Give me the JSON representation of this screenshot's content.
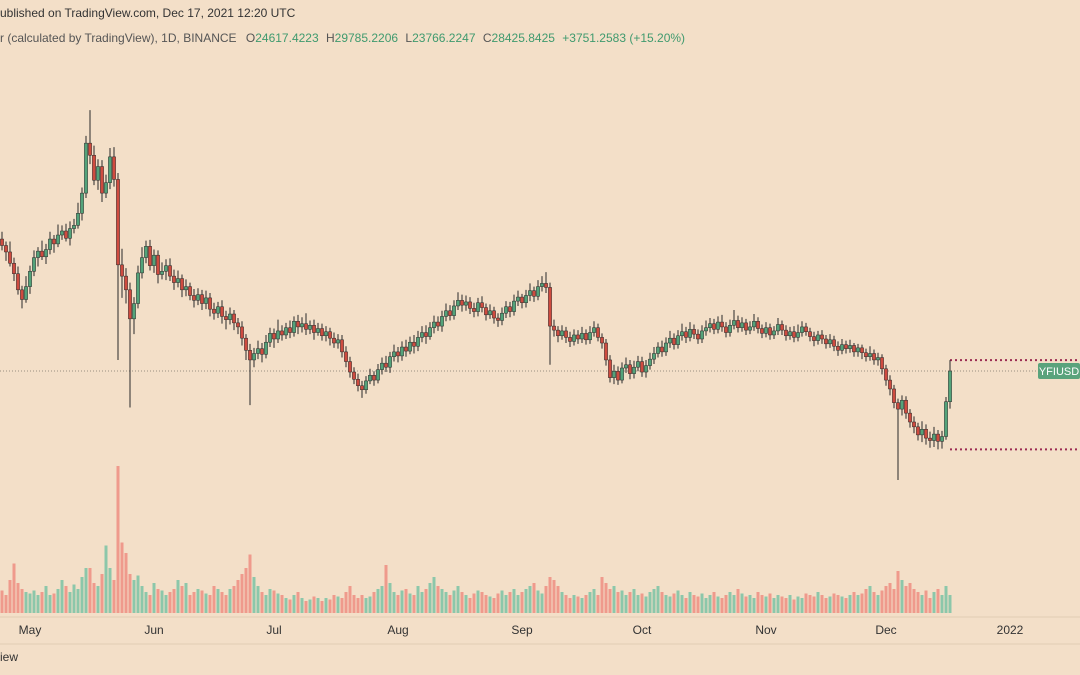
{
  "header": {
    "published": "ublished on TradingView.com, Dec 17, 2021 12:20 UTC",
    "symbol": "r (calculated by TradingView), 1D, BINANCE",
    "o_label": "O",
    "h_label": "H",
    "l_label": "L",
    "c_label": "C",
    "change": "+3751.2583 (+15.20%)"
  },
  "footer": {
    "brand": "iew"
  },
  "chart_data": {
    "type": "candlestick",
    "open": [
      44800,
      44000,
      43200,
      41800,
      40500,
      38500,
      37300,
      38900,
      40800,
      42500,
      43300,
      42600,
      43500,
      44800,
      44200,
      45300,
      45800,
      44900,
      46100,
      46500,
      48000,
      50500,
      56700,
      55200,
      52100,
      53800,
      50500,
      51800,
      55000,
      52200,
      41600,
      40200,
      38500,
      34900,
      36800,
      40600,
      42500,
      43900,
      41500,
      42800,
      40400,
      40800,
      41500,
      40200,
      39400,
      39900,
      38500,
      38900,
      37800,
      37200,
      37900,
      36800,
      37500,
      36100,
      35600,
      36400,
      35200,
      34800,
      35500,
      34400,
      33900,
      32500,
      31000,
      29800,
      30600,
      31200,
      30500,
      32000,
      33100,
      32400,
      33400,
      32900,
      33800,
      33200,
      34600,
      33900,
      34300,
      33600,
      34100,
      33200,
      33700,
      32800,
      33300,
      32500,
      31900,
      32300,
      30800,
      29600,
      28300,
      27400,
      26600,
      26100,
      27200,
      27900,
      27300,
      28600,
      29400,
      28900,
      30200,
      30800,
      30300,
      31400,
      30900,
      32000,
      31500,
      32600,
      33200,
      32700,
      33800,
      34500,
      34000,
      35200,
      35900,
      35300,
      36500,
      37200,
      36600,
      37000,
      36200,
      35800,
      36900,
      36300,
      35400,
      35900,
      35000,
      34700,
      35600,
      36400,
      35800,
      37100,
      37600,
      36900,
      37800,
      38400,
      37700,
      38900,
      39300,
      38800,
      34000,
      33500,
      32800,
      33400,
      32600,
      32100,
      32900,
      32400,
      33100,
      32300,
      33200,
      33800,
      32600,
      31900,
      29800,
      27600,
      28400,
      27300,
      28800,
      29200,
      28100,
      28900,
      29600,
      28300,
      29100,
      29900,
      30600,
      31400,
      30800,
      31900,
      32500,
      31700,
      32800,
      33300,
      32600,
      33600,
      33000,
      32400,
      33400,
      33800,
      34300,
      33600,
      34500,
      33900,
      33200,
      34100,
      34700,
      33800,
      34400,
      33500,
      33900,
      34600,
      33700,
      33100,
      33800,
      32900,
      33400,
      34200,
      33500,
      32800,
      33300,
      32600,
      33200,
      33900,
      33300,
      32700,
      32200,
      32900,
      32400,
      31800,
      32300,
      31500,
      31000,
      31700,
      31200,
      31600,
      30800,
      31300,
      30700,
      30200,
      30600,
      29800,
      30100,
      28700,
      27300,
      26200,
      24500,
      23700,
      24800,
      23200,
      22100,
      21500,
      20500,
      21200,
      20100,
      19800,
      20600,
      19700,
      20300,
      24617.4223
    ],
    "high": [
      45700,
      44500,
      44500,
      42500,
      41400,
      39000,
      40200,
      41500,
      43400,
      43800,
      44600,
      44200,
      45700,
      45300,
      46600,
      46500,
      46700,
      47000,
      47300,
      49300,
      51200,
      57600,
      60800,
      56400,
      54700,
      54600,
      52800,
      56100,
      56200,
      53000,
      43600,
      41200,
      39400,
      37600,
      41500,
      43800,
      44600,
      44700,
      43500,
      43400,
      41900,
      42300,
      42400,
      41000,
      40900,
      40400,
      39800,
      39400,
      38600,
      38700,
      38500,
      38400,
      38100,
      36900,
      37000,
      37200,
      35900,
      36300,
      36000,
      35000,
      34600,
      33000,
      31800,
      31300,
      32200,
      31900,
      32900,
      33800,
      33700,
      34800,
      34100,
      34400,
      34700,
      35200,
      35400,
      35100,
      35600,
      34700,
      34800,
      34400,
      34300,
      34000,
      33800,
      33200,
      33000,
      32900,
      31500,
      30200,
      28900,
      28100,
      27200,
      27800,
      28700,
      28400,
      29300,
      30100,
      30300,
      30800,
      31700,
      31400,
      32100,
      32300,
      32700,
      32900,
      33400,
      34000,
      34100,
      34500,
      35300,
      35200,
      35900,
      36800,
      36600,
      37200,
      38200,
      37900,
      37800,
      37600,
      36900,
      37500,
      37700,
      36800,
      36700,
      36400,
      35600,
      36300,
      37100,
      37000,
      37900,
      38400,
      38000,
      38500,
      39300,
      38900,
      39700,
      40200,
      40700,
      39400,
      34800,
      34000,
      34100,
      33900,
      33300,
      33600,
      33500,
      33900,
      33600,
      34000,
      34600,
      34300,
      33100,
      32400,
      30400,
      29200,
      29000,
      29500,
      30100,
      29800,
      29700,
      30300,
      30200,
      29800,
      30700,
      31400,
      32000,
      32200,
      32600,
      33400,
      33100,
      33500,
      34300,
      33900,
      34500,
      34200,
      33600,
      34100,
      34700,
      35000,
      34900,
      35200,
      35400,
      34500,
      34800,
      36000,
      35300,
      35100,
      34900,
      34600,
      35500,
      35100,
      34200,
      34500,
      34300,
      34000,
      35000,
      34700,
      34100,
      33900,
      34000,
      34200,
      34600,
      34400,
      33800,
      33300,
      33400,
      33500,
      32900,
      33000,
      32800,
      32100,
      32400,
      32200,
      32300,
      31900,
      31800,
      31700,
      31200,
      31500,
      31100,
      30700,
      30500,
      29200,
      27900,
      26700,
      25000,
      25400,
      25300,
      23700,
      22800,
      22000,
      22200,
      21800,
      20900,
      21500,
      21100,
      21000,
      25200,
      29785.2206
    ],
    "low": [
      43400,
      42100,
      41400,
      39600,
      37900,
      36200,
      36900,
      38000,
      40200,
      41400,
      42200,
      41700,
      42900,
      43100,
      43800,
      44700,
      44500,
      44000,
      45500,
      46100,
      47100,
      49900,
      54100,
      51500,
      50900,
      49400,
      49900,
      51000,
      51300,
      29800,
      37500,
      36800,
      23900,
      33000,
      36200,
      39900,
      41800,
      40900,
      40600,
      39300,
      39800,
      39700,
      39600,
      38500,
      38800,
      37600,
      37700,
      37200,
      36300,
      36600,
      36000,
      36100,
      35200,
      34800,
      35000,
      34300,
      33600,
      34200,
      33500,
      33000,
      31600,
      29800,
      24200,
      28900,
      29900,
      29500,
      30000,
      31400,
      31300,
      31900,
      32200,
      32400,
      32500,
      32700,
      33000,
      33200,
      32900,
      33000,
      32300,
      32800,
      32200,
      32100,
      31600,
      31300,
      31200,
      30100,
      28900,
      27600,
      26800,
      25900,
      25100,
      25600,
      26800,
      26600,
      26900,
      28000,
      28300,
      28200,
      29600,
      29500,
      29700,
      30200,
      30500,
      30600,
      30900,
      32000,
      31800,
      32300,
      33100,
      33400,
      33300,
      34600,
      34700,
      34800,
      36000,
      35800,
      35900,
      35500,
      35100,
      35200,
      35700,
      34700,
      34900,
      34300,
      33900,
      34100,
      35000,
      35100,
      35300,
      36500,
      36200,
      36300,
      37100,
      37000,
      37200,
      38300,
      38100,
      29200,
      32700,
      32000,
      32300,
      31900,
      31400,
      31600,
      31800,
      31900,
      31700,
      31800,
      32700,
      32100,
      31200,
      29100,
      27000,
      26800,
      26700,
      26900,
      28200,
      27400,
      27500,
      28400,
      27700,
      27600,
      28600,
      29300,
      30100,
      30200,
      30300,
      31300,
      31100,
      31200,
      32200,
      31900,
      32100,
      32400,
      31800,
      31900,
      32800,
      33200,
      33000,
      33100,
      33300,
      32600,
      32700,
      33600,
      33200,
      33300,
      32900,
      33000,
      33400,
      33100,
      32500,
      32600,
      32300,
      32400,
      32900,
      32900,
      32200,
      32300,
      32000,
      32100,
      32700,
      32800,
      32100,
      31500,
      31700,
      31800,
      31200,
      31300,
      30900,
      30300,
      30500,
      30600,
      30700,
      30200,
      30200,
      29900,
      29600,
      29700,
      29200,
      29100,
      28000,
      26600,
      25400,
      23800,
      14900,
      22900,
      22500,
      21400,
      20700,
      19800,
      19600,
      19300,
      18900,
      19000,
      18700,
      18800,
      19900,
      23766.2247
    ],
    "close": [
      44000,
      43200,
      41800,
      40500,
      38500,
      37300,
      38900,
      40800,
      42500,
      43300,
      42600,
      43500,
      44800,
      44200,
      45300,
      45800,
      44900,
      46100,
      46500,
      48000,
      50500,
      56700,
      55200,
      52100,
      53800,
      50500,
      51800,
      55000,
      52200,
      41600,
      40200,
      38500,
      34900,
      36800,
      40600,
      42500,
      43900,
      41500,
      42800,
      40400,
      40800,
      41500,
      40200,
      39400,
      39900,
      38500,
      38900,
      37800,
      37200,
      37900,
      36800,
      37500,
      36100,
      35600,
      36400,
      35200,
      34800,
      35500,
      34400,
      33900,
      32500,
      31000,
      29800,
      30600,
      31200,
      30500,
      32000,
      33100,
      32400,
      33400,
      32900,
      33800,
      33200,
      34600,
      33900,
      34300,
      33600,
      34100,
      33200,
      33700,
      32800,
      33300,
      32500,
      31900,
      32300,
      30800,
      29600,
      28300,
      27400,
      26600,
      26100,
      27200,
      27900,
      27300,
      28600,
      29400,
      28900,
      30200,
      30800,
      30300,
      31400,
      30900,
      32000,
      31500,
      32600,
      33200,
      32700,
      33800,
      34500,
      34000,
      35200,
      35900,
      35300,
      36500,
      37200,
      36600,
      37000,
      36200,
      35800,
      36900,
      36300,
      35400,
      35900,
      35000,
      34700,
      35600,
      36400,
      35800,
      37100,
      37600,
      36900,
      37800,
      38400,
      37700,
      38900,
      39300,
      38800,
      34000,
      33500,
      32800,
      33400,
      32600,
      32100,
      32900,
      32400,
      33100,
      32300,
      33200,
      33800,
      32600,
      31900,
      29800,
      27600,
      28400,
      27300,
      28800,
      29200,
      28100,
      28900,
      29600,
      28300,
      29100,
      29900,
      30600,
      31400,
      30800,
      31900,
      32500,
      31700,
      32800,
      33300,
      32600,
      33600,
      33000,
      32400,
      33400,
      33800,
      34300,
      33600,
      34500,
      33900,
      33200,
      34100,
      34700,
      33800,
      34400,
      33500,
      33900,
      34600,
      33700,
      33100,
      33800,
      32900,
      33400,
      34200,
      33500,
      32800,
      33300,
      32600,
      33200,
      33900,
      33300,
      32700,
      32200,
      32900,
      32400,
      31800,
      32300,
      31500,
      31000,
      31700,
      31200,
      31600,
      30800,
      31300,
      30700,
      30200,
      30600,
      29800,
      30100,
      28700,
      27300,
      26200,
      24500,
      23700,
      24800,
      23200,
      22100,
      21500,
      20500,
      21200,
      20100,
      19800,
      20600,
      19700,
      20300,
      24617.4223,
      28425.8425
    ],
    "volume": [
      15,
      12,
      22,
      33,
      20,
      16,
      14,
      13,
      15,
      12,
      14,
      18,
      12,
      13,
      16,
      22,
      18,
      14,
      19,
      16,
      24,
      30,
      30,
      20,
      18,
      26,
      45,
      30,
      22,
      98,
      47,
      40,
      26,
      22,
      25,
      18,
      14,
      12,
      20,
      16,
      15,
      12,
      14,
      16,
      22,
      18,
      20,
      12,
      14,
      16,
      15,
      13,
      12,
      18,
      16,
      14,
      12,
      16,
      18,
      22,
      26,
      30,
      39,
      24,
      18,
      14,
      12,
      16,
      15,
      13,
      12,
      10,
      9,
      12,
      14,
      10,
      8,
      9,
      11,
      10,
      8,
      10,
      9,
      12,
      11,
      10,
      14,
      18,
      12,
      10,
      12,
      10,
      11,
      14,
      16,
      18,
      32,
      20,
      14,
      12,
      15,
      16,
      13,
      12,
      18,
      14,
      16,
      20,
      24,
      18,
      16,
      14,
      12,
      15,
      18,
      14,
      12,
      10,
      13,
      15,
      14,
      12,
      11,
      10,
      13,
      15,
      12,
      14,
      16,
      12,
      14,
      16,
      18,
      20,
      15,
      13,
      18,
      24,
      22,
      18,
      14,
      12,
      10,
      12,
      11,
      10,
      12,
      14,
      16,
      12,
      24,
      20,
      16,
      18,
      14,
      15,
      12,
      14,
      16,
      12,
      13,
      11,
      14,
      16,
      18,
      14,
      12,
      11,
      13,
      15,
      12,
      10,
      14,
      12,
      11,
      13,
      10,
      12,
      14,
      11,
      10,
      12,
      14,
      12,
      16,
      13,
      11,
      12,
      10,
      14,
      12,
      11,
      13,
      10,
      12,
      11,
      10,
      12,
      9,
      11,
      10,
      13,
      12,
      11,
      14,
      12,
      10,
      11,
      13,
      12,
      11,
      10,
      12,
      14,
      12,
      13,
      16,
      18,
      14,
      12,
      15,
      18,
      20,
      16,
      28,
      22,
      18,
      20,
      16,
      14,
      12,
      15,
      10,
      14,
      16,
      12,
      18,
      12
    ],
    "ylim": [
      -1600,
      69500
    ],
    "volume_lim": [
      0,
      100
    ],
    "xlim": [
      -0.5,
      269.5
    ],
    "xticks": [
      {
        "value": 7,
        "label": "May"
      },
      {
        "value": 38,
        "label": "Jun"
      },
      {
        "value": 68,
        "label": "Jul"
      },
      {
        "value": 99,
        "label": "Aug"
      },
      {
        "value": 130,
        "label": "Sep"
      },
      {
        "value": 160,
        "label": "Oct"
      },
      {
        "value": 191,
        "label": "Nov"
      },
      {
        "value": 221,
        "label": "Dec"
      },
      {
        "value": 252,
        "label": "2022"
      }
    ],
    "up_color": "#53a37a",
    "down_color": "#cf4b3f",
    "up_volume_color": "#8cc7aa",
    "down_volume_color": "#ef9a8c",
    "price_label": "YFIUSD",
    "price_label_color": "#5aa37c",
    "hlines": [
      {
        "value": 29785.2206,
        "color": "#9b2c52"
      },
      {
        "value": 18700,
        "color": "#9b2c52"
      }
    ]
  }
}
